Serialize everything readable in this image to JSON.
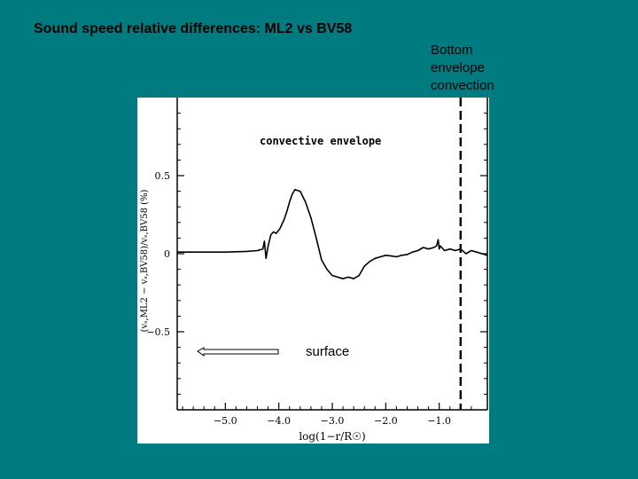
{
  "slide": {
    "title": "Sound speed relative differences: ML2 vs BV58",
    "side_note": "Bottom\nenvelope\nconvection",
    "surface_label": "surface"
  },
  "colors": {
    "background": "#007b80",
    "plot_background": "#ffffff",
    "ink": "#000000"
  },
  "chart_data": {
    "type": "line",
    "title": "",
    "xlabel": "log(1−r/R☉)",
    "ylabel": "(vₛ,ML2 − vₛ,BV58)/vₛ,BV58 (%)",
    "xlim": [
      -5.9,
      -0.1
    ],
    "ylim": [
      -1.0,
      1.0
    ],
    "xticks": [
      -5.0,
      -4.0,
      -3.0,
      -2.0,
      -1.0
    ],
    "xtick_labels": [
      "−5.0",
      "−4.0",
      "−3.0",
      "−2.0",
      "−1.0"
    ],
    "yticks": [
      0.5,
      0,
      -0.5
    ],
    "ytick_labels": [
      "0.5",
      "0",
      "−0.5"
    ],
    "annotation": "convective envelope",
    "bce_line_x": -0.6,
    "series": [
      {
        "name": "ML2 vs BV58",
        "x": [
          -5.9,
          -5.5,
          -5.0,
          -4.6,
          -4.4,
          -4.3,
          -4.27,
          -4.24,
          -4.2,
          -4.15,
          -4.1,
          -4.05,
          -3.98,
          -3.9,
          -3.85,
          -3.8,
          -3.75,
          -3.7,
          -3.6,
          -3.5,
          -3.4,
          -3.3,
          -3.2,
          -3.1,
          -3.0,
          -2.9,
          -2.8,
          -2.7,
          -2.6,
          -2.5,
          -2.4,
          -2.3,
          -2.2,
          -2.1,
          -2.0,
          -1.9,
          -1.8,
          -1.7,
          -1.6,
          -1.5,
          -1.4,
          -1.3,
          -1.2,
          -1.1,
          -1.05,
          -1.02,
          -1.0,
          -0.98,
          -0.9,
          -0.8,
          -0.7,
          -0.6,
          -0.5,
          -0.4,
          -0.3,
          -0.2,
          -0.1
        ],
        "y": [
          0.01,
          0.01,
          0.01,
          0.015,
          0.02,
          0.03,
          0.08,
          -0.03,
          0.05,
          0.12,
          0.14,
          0.13,
          0.16,
          0.22,
          0.27,
          0.33,
          0.38,
          0.41,
          0.4,
          0.33,
          0.23,
          0.1,
          -0.04,
          -0.1,
          -0.14,
          -0.15,
          -0.16,
          -0.15,
          -0.16,
          -0.14,
          -0.08,
          -0.05,
          -0.03,
          -0.02,
          -0.01,
          -0.015,
          -0.02,
          -0.01,
          -0.005,
          0.01,
          0.02,
          0.04,
          0.03,
          0.04,
          0.05,
          0.09,
          0.03,
          0.05,
          0.02,
          0.03,
          0.02,
          0.03,
          0.0,
          0.02,
          0.01,
          0.0,
          -0.01
        ]
      }
    ]
  }
}
